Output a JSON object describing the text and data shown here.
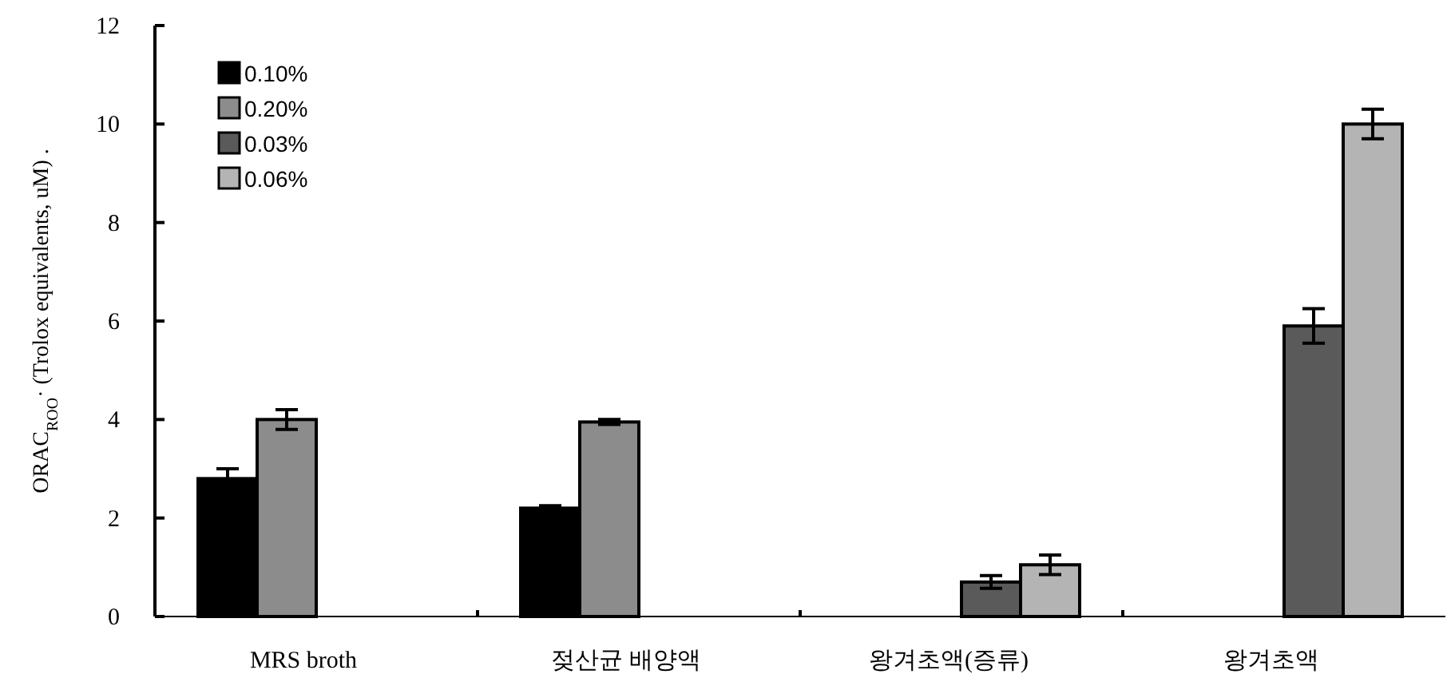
{
  "chart_data": {
    "type": "bar",
    "ylabel": "ORAC$_{ROO}$· (Trolox equivalents, uM) .",
    "categories": [
      "MRS broth",
      "젖산균 배양액",
      "왕겨초액(증류)",
      "왕겨초액"
    ],
    "series": [
      {
        "name": "0.10%",
        "color": "#000000",
        "values": [
          2.8,
          2.2,
          null,
          null
        ],
        "errors": [
          0.2,
          0.05,
          null,
          null
        ]
      },
      {
        "name": "0.20%",
        "color": "#8c8c8c",
        "values": [
          4.0,
          3.95,
          null,
          null
        ],
        "errors": [
          0.2,
          0.05,
          null,
          null
        ]
      },
      {
        "name": "0.03%",
        "color": "#5a5a5a",
        "values": [
          null,
          null,
          0.7,
          5.9
        ],
        "errors": [
          null,
          null,
          0.13,
          0.35
        ]
      },
      {
        "name": "0.06%",
        "color": "#b4b4b4",
        "values": [
          null,
          null,
          1.05,
          10.0
        ],
        "errors": [
          null,
          null,
          0.2,
          0.3
        ]
      }
    ],
    "ylim": [
      0,
      12
    ],
    "yticks": [
      0,
      2,
      4,
      6,
      8,
      10,
      12
    ],
    "grid": false,
    "legend": "top left"
  }
}
